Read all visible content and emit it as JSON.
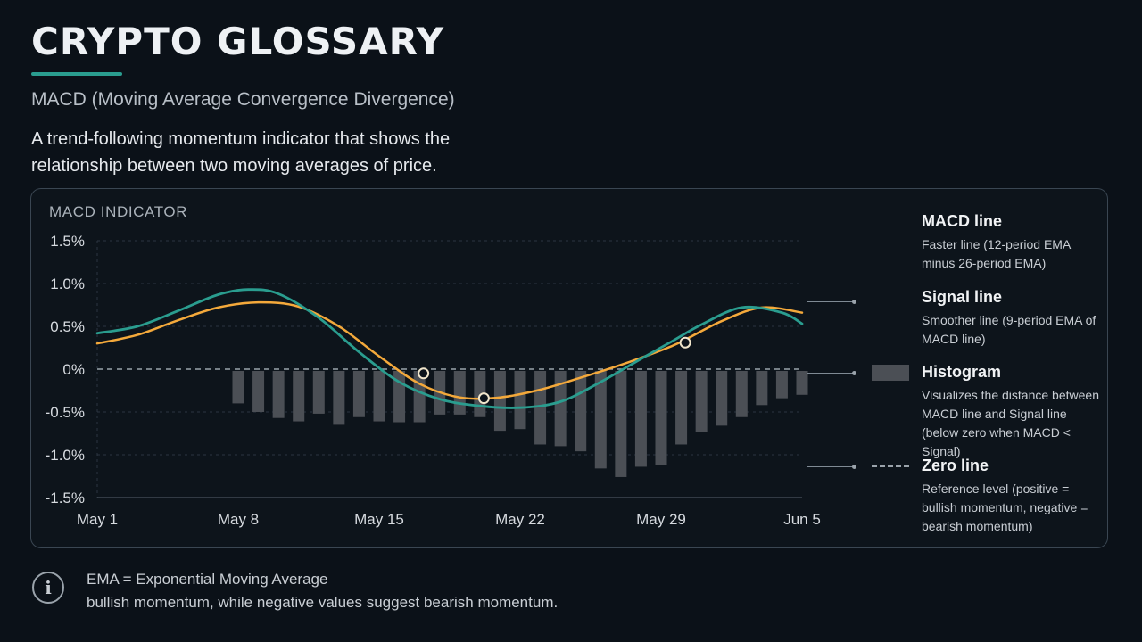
{
  "page": {
    "title": "CRYPTO GLOSSARY",
    "subtitle": "MACD (Moving Average Convergence Divergence)",
    "description": "A trend-following momentum indicator that shows the relationship between two moving averages of price."
  },
  "panel": {
    "label": "MACD INDICATOR"
  },
  "legend": [
    {
      "name": "MACD line",
      "desc": "Faster line (12-period EMA minus 26-period EMA)",
      "symbol": "line",
      "color": "#2a9d8f"
    },
    {
      "name": "Signal line",
      "desc": "Smoother line (9-period EMA of MACD line)",
      "symbol": "line",
      "color": "#f4a93b"
    },
    {
      "name": "Histogram",
      "desc": "Visualizes the distance between MACD line and Signal line (below zero when MACD < Signal)",
      "symbol": "box",
      "color": "#4b4f55"
    },
    {
      "name": "Zero line",
      "desc": "Reference level (positive = bullish momentum, negative = bearish momentum)",
      "symbol": "dashed-line",
      "color": "#9aa3ab"
    }
  ],
  "footnote": {
    "icon": "info-icon",
    "line1": "EMA = Exponential Moving Average",
    "line2": "bullish momentum, while negative values suggest bearish momentum."
  },
  "chart_data": {
    "type": "line",
    "x_tick_labels": [
      "May 1",
      "May 8",
      "May 15",
      "May 22",
      "May 29",
      "Jun 5"
    ],
    "x_tick_days": [
      0,
      7,
      14,
      21,
      28,
      35
    ],
    "y_tick_labels": [
      "1.5%",
      "1.0%",
      "0.5%",
      "0%",
      "-0.5%",
      "-1.0%",
      "-1.5%"
    ],
    "y_tick_values": [
      1.5,
      1.0,
      0.5,
      0,
      -0.5,
      -1.0,
      -1.5
    ],
    "xlim": [
      0,
      35
    ],
    "ylim": [
      -1.5,
      1.5
    ],
    "grid": true,
    "series": [
      {
        "name": "MACD line",
        "color": "#2a9d8f",
        "x": [
          0,
          2,
          4,
          6,
          7.5,
          9,
          11,
          13,
          15,
          17,
          19,
          21,
          23,
          25,
          27,
          28.5,
          30,
          32,
          34,
          35
        ],
        "values": [
          0.42,
          0.5,
          0.68,
          0.87,
          0.93,
          0.88,
          0.6,
          0.2,
          -0.15,
          -0.35,
          -0.43,
          -0.45,
          -0.38,
          -0.15,
          0.12,
          0.32,
          0.52,
          0.72,
          0.66,
          0.53
        ]
      },
      {
        "name": "Signal line",
        "color": "#f4a93b",
        "x": [
          0,
          2,
          4,
          6,
          8,
          10,
          12,
          14,
          16,
          18,
          20,
          22,
          24,
          26,
          28,
          29,
          31,
          33,
          35
        ],
        "values": [
          0.3,
          0.4,
          0.57,
          0.72,
          0.78,
          0.73,
          0.5,
          0.15,
          -0.17,
          -0.33,
          -0.33,
          -0.24,
          -0.1,
          0.05,
          0.22,
          0.32,
          0.56,
          0.72,
          0.66
        ]
      },
      {
        "name": "Histogram",
        "color": "#4b4f55",
        "x": [
          7,
          8,
          9,
          10,
          11,
          12,
          13,
          14,
          15,
          16,
          17,
          18,
          19,
          20,
          21,
          22,
          23,
          24,
          25,
          26,
          27,
          28,
          29,
          30,
          31,
          32,
          33,
          34,
          35
        ],
        "values": [
          -0.4,
          -0.5,
          -0.57,
          -0.61,
          -0.52,
          -0.65,
          -0.56,
          -0.61,
          -0.62,
          -0.62,
          -0.53,
          -0.53,
          -0.56,
          -0.72,
          -0.7,
          -0.88,
          -0.9,
          -0.96,
          -1.16,
          -1.26,
          -1.14,
          -1.12,
          -0.88,
          -0.73,
          -0.66,
          -0.56,
          -0.42,
          -0.34,
          -0.3
        ]
      }
    ],
    "crossovers": [
      {
        "x": 16.2,
        "y": -0.05
      },
      {
        "x": 19.2,
        "y": -0.34
      },
      {
        "x": 29.2,
        "y": 0.31
      }
    ]
  }
}
